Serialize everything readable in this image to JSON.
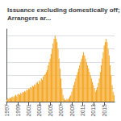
{
  "chart_data": {
    "type": "bar",
    "title": "Issuance excluding domestically off; Arrangers ar...",
    "categories": [
      "1997",
      null,
      null,
      null,
      null,
      null,
      null,
      null,
      null,
      null,
      null,
      "1999",
      null,
      null,
      null,
      null,
      null,
      null,
      null,
      null,
      null,
      null,
      "2001",
      null,
      null,
      null,
      null,
      null,
      null,
      null,
      null,
      null,
      null,
      "2003",
      null,
      null,
      null,
      null,
      null,
      null,
      null,
      null,
      null,
      null,
      "2005",
      null,
      null,
      null,
      null,
      null,
      null,
      null,
      null,
      null,
      null,
      "2007",
      null,
      null,
      null,
      null,
      null,
      null,
      null,
      null,
      null,
      null,
      "2009",
      null,
      null,
      null,
      null,
      null,
      null,
      null,
      null,
      null,
      null,
      "2011",
      null,
      null,
      null,
      null,
      null,
      null,
      null,
      null,
      null,
      null,
      "2013",
      null,
      null,
      null,
      null,
      null,
      null,
      null,
      null,
      null,
      null,
      "2015",
      null,
      null,
      null,
      null,
      null,
      null,
      null,
      null,
      null,
      null
    ],
    "values": [
      0.3,
      0.5,
      0.4,
      0.6,
      0.5,
      0.7,
      0.8,
      0.6,
      0.9,
      1.0,
      0.8,
      1.1,
      1.2,
      1.0,
      1.3,
      1.2,
      1.5,
      1.4,
      1.6,
      1.5,
      1.8,
      1.7,
      2.0,
      1.9,
      2.2,
      2.1,
      2.4,
      2.3,
      2.6,
      2.5,
      2.8,
      3.0,
      2.7,
      3.2,
      3.0,
      3.5,
      3.3,
      3.8,
      4.0,
      4.2,
      4.5,
      4.8,
      5.5,
      6.0,
      6.5,
      7.2,
      8.0,
      8.8,
      9.5,
      10.0,
      9.5,
      9.0,
      8.0,
      6.5,
      5.0,
      3.5,
      2.0,
      1.0,
      0.5,
      0.3,
      0.2,
      0.4,
      0.3,
      0.5,
      0.8,
      1.0,
      1.5,
      2.0,
      2.5,
      3.0,
      3.5,
      4.0,
      4.5,
      5.0,
      5.5,
      6.0,
      6.5,
      7.0,
      7.5,
      7.0,
      6.5,
      6.0,
      5.5,
      5.0,
      4.5,
      4.0,
      3.5,
      3.0,
      2.5,
      2.0,
      1.5,
      1.8,
      2.2,
      2.8,
      3.5,
      4.5,
      5.5,
      6.5,
      7.5,
      8.5,
      9.0,
      9.5,
      9.0,
      8.0,
      7.0,
      5.5,
      4.0,
      2.5,
      1.5,
      1.0
    ],
    "color": "#F5A623",
    "ylim": [
      0,
      11
    ],
    "yticks": [
      0,
      2,
      4,
      6,
      8,
      10
    ],
    "grid": true,
    "tick_labels": "x"
  }
}
